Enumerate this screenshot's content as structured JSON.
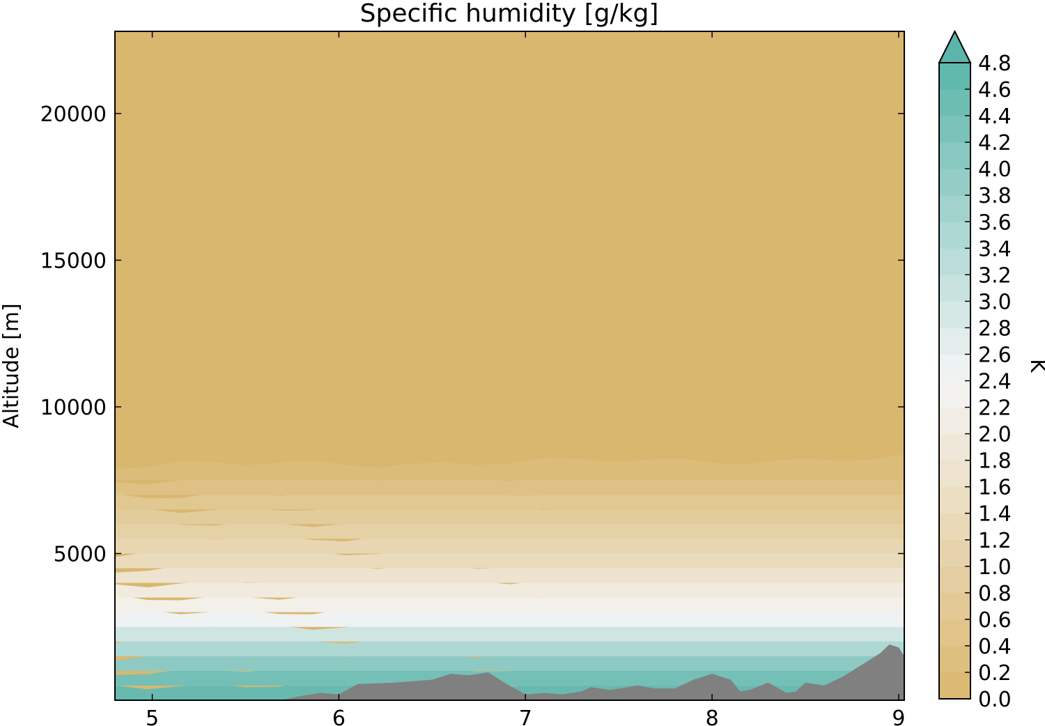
{
  "chart_data": {
    "type": "heatmap",
    "title": "Specific humidity [g/kg]",
    "xlabel": "",
    "ylabel": "Altitude [m]",
    "xlim": [
      4.8,
      9.03
    ],
    "ylim": [
      0,
      22800
    ],
    "xticks": [
      5,
      6,
      7,
      8,
      9
    ],
    "yticks": [
      5000,
      10000,
      15000,
      20000
    ],
    "colorbar": {
      "label": "K",
      "min": 0.0,
      "max": 4.8,
      "step": 0.2,
      "extend": "max",
      "ticks": [
        "0.0",
        "0.2",
        "0.4",
        "0.6",
        "0.8",
        "1.0",
        "1.2",
        "1.4",
        "1.6",
        "1.8",
        "2.0",
        "2.2",
        "2.4",
        "2.6",
        "2.8",
        "3.0",
        "3.2",
        "3.4",
        "3.6",
        "3.8",
        "4.0",
        "4.2",
        "4.4",
        "4.6",
        "4.8"
      ],
      "colors": {
        "low": "#dab76e",
        "mid": "#f5f5f5",
        "high": "#5bb5aa",
        "terrain": "#808080"
      }
    },
    "profile": {
      "altitude_m": [
        0,
        500,
        1000,
        1500,
        2000,
        2500,
        3000,
        3500,
        4000,
        4500,
        5000,
        5500,
        6000,
        6500,
        7000,
        7500,
        8000
      ],
      "humidity_g_per_kg": [
        4.6,
        4.4,
        4.0,
        3.5,
        3.0,
        2.5,
        2.2,
        2.0,
        1.7,
        1.4,
        1.2,
        1.0,
        0.8,
        0.6,
        0.4,
        0.2,
        0.0
      ]
    },
    "terrain": {
      "x": [
        4.8,
        5.5,
        5.7,
        5.8,
        5.9,
        6.0,
        6.1,
        6.3,
        6.5,
        6.6,
        6.7,
        6.8,
        6.9,
        7.0,
        7.1,
        7.2,
        7.3,
        7.35,
        7.45,
        7.5,
        7.6,
        7.7,
        7.8,
        7.9,
        8.0,
        8.1,
        8.15,
        8.2,
        8.3,
        8.4,
        8.45,
        8.5,
        8.6,
        8.7,
        8.8,
        8.9,
        8.95,
        9.0,
        9.03
      ],
      "altitude_m": [
        0,
        0,
        20,
        150,
        250,
        200,
        550,
        600,
        700,
        900,
        850,
        950,
        550,
        200,
        250,
        200,
        300,
        450,
        350,
        400,
        500,
        400,
        400,
        700,
        900,
        700,
        300,
        350,
        600,
        250,
        300,
        600,
        500,
        800,
        1200,
        1600,
        1900,
        1800,
        1500
      ]
    }
  }
}
